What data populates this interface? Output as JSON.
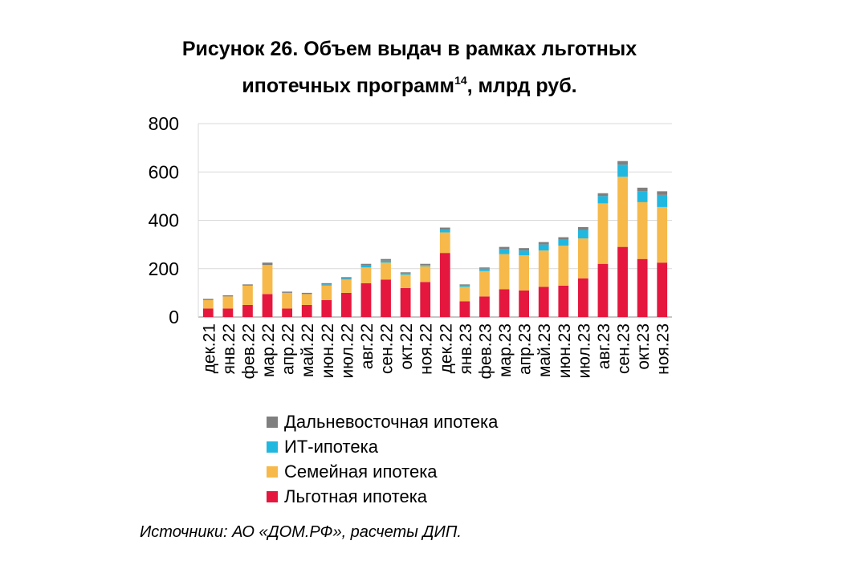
{
  "chart_data": {
    "type": "bar",
    "stacked": true,
    "title_line1": "Рисунок 26. Объем выдач в рамках льготных",
    "title_line2": "ипотечных программ",
    "title_sup": "14",
    "title_line2_end": ", млрд руб.",
    "ylim": [
      0,
      800
    ],
    "yticks": [
      "0",
      "200",
      "400",
      "600",
      "800"
    ],
    "grid": true,
    "legend_position": "bottom",
    "categories": [
      "дек.21",
      "янв.22",
      "фев.22",
      "мар.22",
      "апр.22",
      "май.22",
      "июн.22",
      "июл.22",
      "авг.22",
      "сен.22",
      "окт.22",
      "ноя.22",
      "дек.22",
      "янв.23",
      "фев.23",
      "мар.23",
      "апр.23",
      "май.23",
      "июн.23",
      "июл.23",
      "авг.23",
      "сен.23",
      "окт.23",
      "ноя.23"
    ],
    "series": [
      {
        "name": "Льготная ипотека",
        "color": "#e5173f",
        "values": [
          35,
          35,
          50,
          95,
          35,
          50,
          70,
          100,
          140,
          155,
          120,
          145,
          265,
          65,
          85,
          115,
          110,
          125,
          130,
          160,
          220,
          290,
          240,
          225
        ]
      },
      {
        "name": "Семейная ипотека",
        "color": "#f6b94a",
        "values": [
          35,
          50,
          80,
          120,
          65,
          45,
          60,
          55,
          65,
          70,
          55,
          65,
          85,
          60,
          105,
          145,
          145,
          150,
          165,
          165,
          250,
          290,
          235,
          230
        ]
      },
      {
        "name": "ИТ-ипотека",
        "color": "#21b8e0",
        "values": [
          0,
          0,
          0,
          0,
          0,
          0,
          5,
          5,
          8,
          8,
          5,
          5,
          12,
          5,
          10,
          20,
          20,
          25,
          25,
          35,
          30,
          50,
          45,
          50
        ]
      },
      {
        "name": "Дальневосточная ипотека",
        "color": "#7f7f7f",
        "values": [
          5,
          5,
          5,
          10,
          5,
          5,
          5,
          5,
          7,
          7,
          5,
          5,
          8,
          5,
          5,
          10,
          10,
          10,
          10,
          12,
          12,
          15,
          15,
          15
        ]
      }
    ]
  },
  "legend_order": [
    3,
    2,
    1,
    0
  ],
  "source_text": "Источники: АО «ДОМ.РФ», расчеты ДИП."
}
